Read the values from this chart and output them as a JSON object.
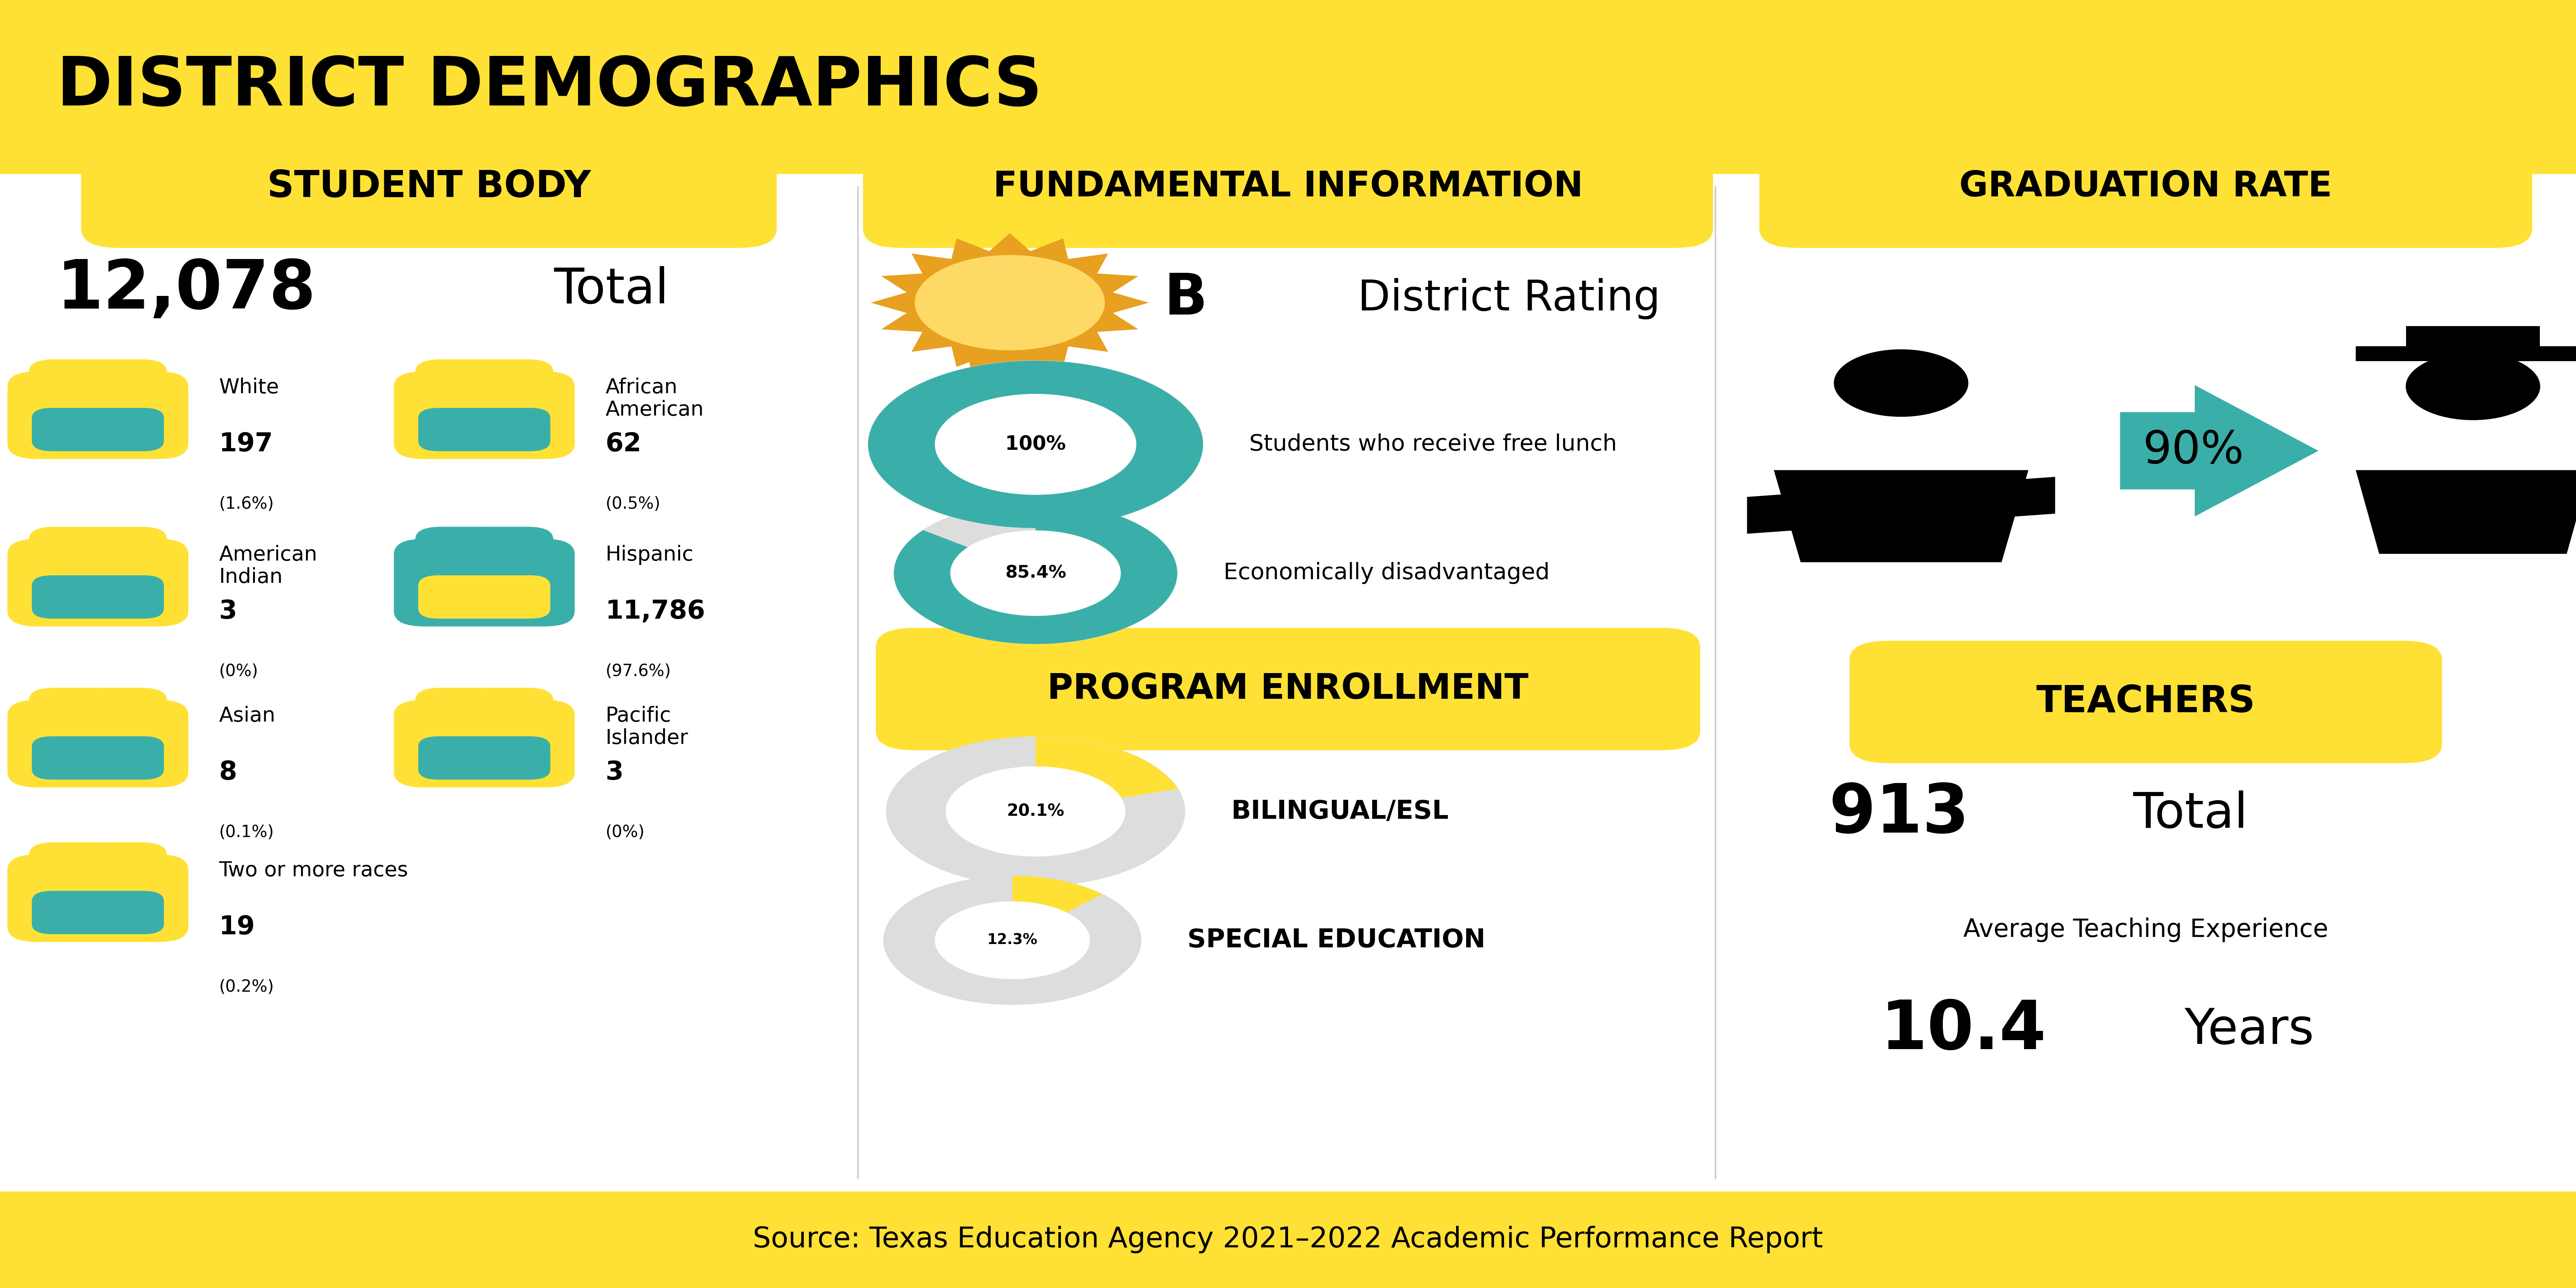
{
  "bg_color": "#FFFFFF",
  "header_color": "#FFE135",
  "footer_color": "#FFE135",
  "title": "DISTRICT DEMOGRAPHICS",
  "title_color": "#000000",
  "footer_text": "Source: Texas Education Agency 2021–2022 Academic Performance Report",
  "teal_color": "#3AAFA9",
  "yellow_color": "#FFE135",
  "orange_color": "#E8A020",
  "student_body_label": "STUDENT BODY",
  "student_total": "12,078",
  "student_groups": [
    {
      "label": "White",
      "value": "197",
      "pct": "(1.6%)",
      "teal": false,
      "col": 0,
      "row": 0
    },
    {
      "label": "African\nAmerican",
      "value": "62",
      "pct": "(0.5%)",
      "teal": false,
      "col": 1,
      "row": 0
    },
    {
      "label": "American\nIndian",
      "value": "3",
      "pct": "(0%)",
      "teal": false,
      "col": 0,
      "row": 1
    },
    {
      "label": "Hispanic",
      "value": "11,786",
      "pct": "(97.6%)",
      "teal": true,
      "col": 1,
      "row": 1
    },
    {
      "label": "Asian",
      "value": "8",
      "pct": "(0.1%)",
      "teal": false,
      "col": 0,
      "row": 2
    },
    {
      "label": "Pacific\nIslander",
      "value": "3",
      "pct": "(0%)",
      "teal": false,
      "col": 1,
      "row": 2
    },
    {
      "label": "Two or more races",
      "value": "19",
      "pct": "(0.2%)",
      "teal": false,
      "col": 0,
      "row": 3
    }
  ],
  "fund_label": "FUNDAMENTAL INFORMATION",
  "district_rating_letter": "B",
  "district_rating_text": "District Rating",
  "free_lunch_pct": 100.0,
  "free_lunch_label": "100%",
  "free_lunch_text": "Students who receive free lunch",
  "econ_disadv_pct": 85.4,
  "econ_disadv_label": "85.4%",
  "econ_disadv_text": "Economically disadvantaged",
  "prog_label": "PROGRAM ENROLLMENT",
  "bilingual_pct": 20.1,
  "bilingual_label": "BILINGUAL/ESL",
  "sped_pct": 12.3,
  "sped_label": "SPECIAL EDUCATION",
  "grad_label": "GRADUATION RATE",
  "grad_pct": "90%",
  "teachers_label": "TEACHERS",
  "teachers_total": "913",
  "avg_exp_label": "Average Teaching Experience",
  "avg_exp_value": "10.4",
  "avg_exp_suffix": "Years"
}
